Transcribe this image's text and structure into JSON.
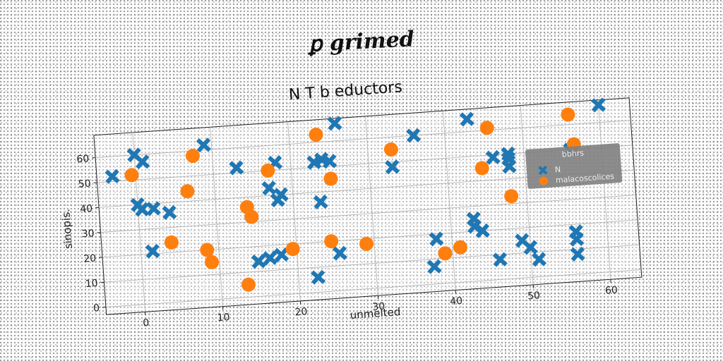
{
  "suptitle": "ꝑ grimed",
  "chart_data": {
    "type": "scatter",
    "title": "N T b eductors",
    "xlabel": "unmelted",
    "ylabel": "sinopis.",
    "xlim": [
      -5,
      64
    ],
    "ylim": [
      -3,
      69
    ],
    "xticks": [
      0,
      10,
      20,
      30,
      40,
      50,
      60
    ],
    "yticks": [
      0,
      10,
      20,
      30,
      40,
      50,
      60
    ],
    "grid": true,
    "legend": {
      "title": "bbhrs",
      "placement": "center-right"
    },
    "series": [
      {
        "name": "N",
        "marker": "x",
        "color": "#1f77b4",
        "points": [
          [
            -3,
            52
          ],
          [
            0,
            60
          ],
          [
            1,
            57
          ],
          [
            0,
            40
          ],
          [
            0.5,
            38
          ],
          [
            2,
            38
          ],
          [
            4,
            36
          ],
          [
            1.5,
            21
          ],
          [
            9,
            62
          ],
          [
            13,
            52
          ],
          [
            15,
            14
          ],
          [
            16.5,
            15
          ],
          [
            18,
            16
          ],
          [
            17,
            43
          ],
          [
            18,
            53
          ],
          [
            18,
            38
          ],
          [
            18.5,
            40
          ],
          [
            23,
            52
          ],
          [
            24,
            53
          ],
          [
            25,
            52
          ],
          [
            23.5,
            36
          ],
          [
            26,
            67
          ],
          [
            25.5,
            15
          ],
          [
            22.5,
            6
          ],
          [
            33,
            48
          ],
          [
            36,
            60
          ],
          [
            38,
            18
          ],
          [
            37.5,
            7
          ],
          [
            43,
            65
          ],
          [
            43,
            25
          ],
          [
            43,
            22
          ],
          [
            44,
            20
          ],
          [
            46,
            8
          ],
          [
            46,
            49
          ],
          [
            48,
            48
          ],
          [
            48,
            50
          ],
          [
            48,
            45
          ],
          [
            49,
            15
          ],
          [
            50,
            12
          ],
          [
            51,
            7
          ],
          [
            56,
            50
          ],
          [
            56,
            17
          ],
          [
            56,
            14
          ],
          [
            56,
            8
          ],
          [
            60,
            67
          ]
        ]
      },
      {
        "name": "malacoscolices",
        "marker": "o",
        "color": "#ff7f0e",
        "points": [
          [
            -0.5,
            52
          ],
          [
            7.5,
            58
          ],
          [
            4,
            24
          ],
          [
            6.5,
            44
          ],
          [
            8.5,
            20
          ],
          [
            9,
            15
          ],
          [
            14,
            36
          ],
          [
            14.5,
            32
          ],
          [
            13.5,
            5
          ],
          [
            17,
            50
          ],
          [
            19.5,
            18
          ],
          [
            23.5,
            63
          ],
          [
            24.5,
            20
          ],
          [
            25,
            45
          ],
          [
            29,
            18
          ],
          [
            33,
            55
          ],
          [
            39,
            12
          ],
          [
            41,
            14
          ],
          [
            44.5,
            45
          ],
          [
            45.5,
            61
          ],
          [
            48,
            33
          ],
          [
            56,
            64
          ],
          [
            56.5,
            52
          ]
        ]
      }
    ]
  },
  "colors": {
    "series_1": "#1f77b4",
    "series_2": "#ff7f0e",
    "legend_bg": "#808080"
  }
}
